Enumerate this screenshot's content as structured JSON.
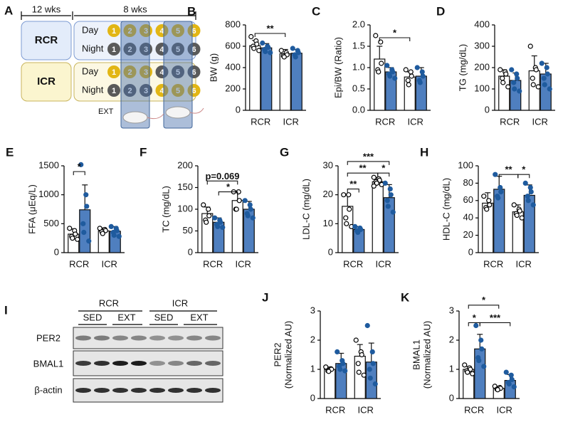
{
  "panel_a": {
    "letter": "A",
    "durations": [
      "12 wks",
      "8 wks"
    ],
    "groups": [
      "RCR",
      "ICR"
    ],
    "rows": [
      "Day",
      "Night"
    ],
    "numbers": [
      "1",
      "2",
      "3",
      "4",
      "5",
      "6"
    ],
    "exercise": "EXT"
  },
  "panel_i": {
    "letter": "I",
    "groups": [
      "RCR",
      "ICR"
    ],
    "conditions": [
      "SED",
      "EXT",
      "SED",
      "EXT"
    ],
    "proteins": [
      "PER2",
      "BMAL1",
      "β-actin"
    ]
  },
  "chart_data": [
    {
      "type": "bar",
      "panel": "B",
      "ylabel": [
        "BW (g)"
      ],
      "categories": [
        "RCR",
        "ICR"
      ],
      "ylim": [
        0,
        800
      ],
      "yticks": [
        0,
        200,
        400,
        600,
        800
      ],
      "annotations": [
        "**"
      ],
      "series": [
        {
          "color": "#ffffff",
          "point_color": "#000000",
          "values": [
            605,
            530
          ],
          "errors": [
            50,
            40
          ],
          "points": [
            [
              690,
              650,
              620,
              600,
              580,
              560
            ],
            [
              560,
              540,
              520,
              510,
              500
            ]
          ]
        },
        {
          "color": "#4f7fbf",
          "point_color": "#1f5b9e",
          "values": [
            585,
            535
          ],
          "errors": [
            40,
            35
          ],
          "points": [
            [
              630,
              600,
              590,
              570,
              550,
              540
            ],
            [
              580,
              560,
              540,
              520,
              500
            ]
          ]
        }
      ]
    },
    {
      "type": "bar",
      "panel": "C",
      "ylabel": [
        "Epi/BW (Ratio)"
      ],
      "categories": [
        "RCR",
        "ICR"
      ],
      "ylim": [
        0,
        2
      ],
      "yticks": [
        {
          "value": 0,
          "label": "0.0"
        },
        0.5,
        {
          "value": 1,
          "label": "1.0"
        },
        1.5,
        {
          "value": 2,
          "label": "2.0"
        }
      ],
      "annotations": [
        "*"
      ],
      "series": [
        {
          "color": "#ffffff",
          "point_color": "#000000",
          "values": [
            1.2,
            0.78
          ],
          "errors": [
            0.3,
            0.12
          ],
          "points": [
            [
              1.75,
              1.6,
              1.1,
              0.95,
              0.9
            ],
            [
              0.95,
              0.9,
              0.8,
              0.7,
              0.6
            ]
          ]
        },
        {
          "color": "#4f7fbf",
          "point_color": "#1f5b9e",
          "values": [
            0.9,
            0.8
          ],
          "errors": [
            0.1,
            0.2
          ],
          "points": [
            [
              1.05,
              0.95,
              0.9,
              0.85,
              0.8,
              0.75
            ],
            [
              1.0,
              0.9,
              0.8,
              0.7,
              0.65
            ]
          ]
        }
      ]
    },
    {
      "type": "bar",
      "panel": "D",
      "ylabel": [
        "TG (mg/dL)"
      ],
      "categories": [
        "RCR",
        "ICR"
      ],
      "ylim": [
        0,
        400
      ],
      "yticks": [
        0,
        100,
        200,
        300,
        400
      ],
      "annotations": [],
      "series": [
        {
          "color": "#ffffff",
          "point_color": "#000000",
          "values": [
            160,
            185
          ],
          "errors": [
            30,
            70
          ],
          "points": [
            [
              190,
              180,
              170,
              150,
              130,
              110
            ],
            [
              300,
              200,
              190,
              150,
              120,
              110
            ]
          ]
        },
        {
          "color": "#4f7fbf",
          "point_color": "#1f5b9e",
          "values": [
            140,
            170
          ],
          "errors": [
            35,
            50
          ],
          "points": [
            [
              190,
              170,
              150,
              130,
              100,
              90
            ],
            [
              220,
              200,
              170,
              150,
              120,
              100
            ]
          ]
        }
      ]
    },
    {
      "type": "bar",
      "panel": "E",
      "ylabel": [
        "FFA (μEq/L)"
      ],
      "categories": [
        "RCR",
        "ICR"
      ],
      "ylim": [
        0,
        1500
      ],
      "yticks": [
        0,
        500,
        1000,
        1500
      ],
      "annotations": [
        "*"
      ],
      "series": [
        {
          "color": "#ffffff",
          "point_color": "#000000",
          "values": [
            320,
            375
          ],
          "errors": [
            90,
            50
          ],
          "points": [
            [
              420,
              380,
              320,
              280,
              250,
              230
            ],
            [
              420,
              400,
              380,
              360,
              330
            ]
          ]
        },
        {
          "color": "#4f7fbf",
          "point_color": "#1f5b9e",
          "values": [
            740,
            370
          ],
          "errors": [
            430,
            80
          ],
          "points": [
            [
              1520,
              1000,
              800,
              500,
              350,
              200
            ],
            [
              450,
              420,
              380,
              350,
              300,
              280
            ]
          ]
        }
      ]
    },
    {
      "type": "bar",
      "panel": "F",
      "ylabel": [
        "TC (mg/dL)"
      ],
      "categories": [
        "RCR",
        "ICR"
      ],
      "ylim": [
        0,
        200
      ],
      "yticks": [
        0,
        50,
        100,
        150,
        200
      ],
      "annotations": [
        "p=0.069",
        "*"
      ],
      "series": [
        {
          "color": "#ffffff",
          "point_color": "#000000",
          "values": [
            90,
            120
          ],
          "errors": [
            15,
            22
          ],
          "points": [
            [
              110,
              100,
              85,
              75,
              70
            ],
            [
              140,
              140,
              120,
              100,
              100
            ]
          ]
        },
        {
          "color": "#4f7fbf",
          "point_color": "#1f5b9e",
          "values": [
            70,
            100
          ],
          "errors": [
            10,
            18
          ],
          "points": [
            [
              80,
              75,
              70,
              65,
              60,
              58
            ],
            [
              120,
              110,
              100,
              90,
              85,
              80
            ]
          ]
        }
      ]
    },
    {
      "type": "bar",
      "panel": "G",
      "ylabel": [
        "LDL-C (mg/dL)"
      ],
      "categories": [
        "RCR",
        "ICR"
      ],
      "ylim": [
        0,
        30
      ],
      "yticks": [
        0,
        10,
        20,
        30
      ],
      "annotations": [
        "**",
        "**",
        "***",
        "*"
      ],
      "series": [
        {
          "color": "#ffffff",
          "point_color": "#000000",
          "values": [
            16,
            24.5
          ],
          "errors": [
            4,
            1.5
          ],
          "points": [
            [
              20,
              20,
              15,
              12,
              10,
              9
            ],
            [
              26,
              25.5,
              25,
              24.5,
              24,
              23.5,
              23
            ]
          ]
        },
        {
          "color": "#4f7fbf",
          "point_color": "#1f5b9e",
          "values": [
            8,
            19
          ],
          "errors": [
            1,
            4.5
          ],
          "points": [
            [
              9,
              8.5,
              8,
              7.5,
              7
            ],
            [
              24,
              22,
              20,
              18,
              16,
              14
            ]
          ]
        }
      ]
    },
    {
      "type": "bar",
      "panel": "H",
      "ylabel": [
        "HDL-C (mg/dL)"
      ],
      "categories": [
        "RCR",
        "ICR"
      ],
      "ylim": [
        0,
        100
      ],
      "yticks": [
        0,
        20,
        40,
        60,
        80,
        100
      ],
      "annotations": [
        "**",
        "*"
      ],
      "series": [
        {
          "color": "#ffffff",
          "point_color": "#000000",
          "values": [
            57,
            47
          ],
          "errors": [
            12,
            8
          ],
          "points": [
            [
              65,
              60,
              55,
              52,
              50
            ],
            [
              55,
              50,
              48,
              45,
              43,
              40
            ]
          ]
        },
        {
          "color": "#4f7fbf",
          "point_color": "#1f5b9e",
          "values": [
            73,
            66
          ],
          "errors": [
            15,
            12
          ],
          "points": [
            [
              90,
              75,
              70,
              65,
              63
            ],
            [
              80,
              75,
              70,
              65,
              60,
              55
            ]
          ]
        }
      ]
    },
    {
      "type": "bar",
      "panel": "J",
      "ylabel": [
        "PER2",
        "(Normalized AU)"
      ],
      "categories": [
        "RCR",
        "ICR"
      ],
      "ylim": [
        0,
        3
      ],
      "yticks": [
        0,
        1,
        2,
        3
      ],
      "annotations": [],
      "series": [
        {
          "color": "#ffffff",
          "point_color": "#000000",
          "values": [
            1.0,
            1.45
          ],
          "errors": [
            0.08,
            0.4
          ],
          "points": [
            [
              1.08,
              1.02,
              1.0,
              0.95,
              0.93
            ],
            [
              2.0,
              1.6,
              1.5,
              1.2,
              0.9,
              0.8
            ]
          ]
        },
        {
          "color": "#4f7fbf",
          "point_color": "#1f5b9e",
          "values": [
            1.2,
            1.25
          ],
          "errors": [
            0.35,
            0.65
          ],
          "points": [
            [
              1.6,
              1.3,
              1.2,
              1.1,
              1.0,
              0.95
            ],
            [
              2.5,
              1.6,
              1.2,
              1.0,
              0.7,
              0.5
            ]
          ]
        }
      ]
    },
    {
      "type": "bar",
      "panel": "K",
      "ylabel": [
        "BMAL1",
        "(Normalized AU)"
      ],
      "categories": [
        "RCR",
        "ICR"
      ],
      "ylim": [
        0,
        3
      ],
      "yticks": [
        0,
        1,
        2,
        3
      ],
      "annotations": [
        "*",
        "***",
        "*"
      ],
      "series": [
        {
          "color": "#ffffff",
          "point_color": "#000000",
          "values": [
            1.0,
            0.35
          ],
          "errors": [
            0.1,
            0.05
          ],
          "points": [
            [
              1.15,
              1.05,
              1.0,
              0.95,
              0.9,
              0.85
            ],
            [
              0.42,
              0.38,
              0.35,
              0.32,
              0.3
            ]
          ]
        },
        {
          "color": "#4f7fbf",
          "point_color": "#1f5b9e",
          "values": [
            1.7,
            0.62
          ],
          "errors": [
            0.5,
            0.2
          ],
          "points": [
            [
              2.5,
              2.0,
              1.7,
              1.4,
              1.3,
              1.1
            ],
            [
              0.9,
              0.8,
              0.65,
              0.55,
              0.5,
              0.4
            ]
          ]
        }
      ]
    }
  ]
}
